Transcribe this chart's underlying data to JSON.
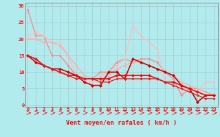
{
  "title": "",
  "xlabel": "Vent moyen/en rafales ( km/h )",
  "background_color": "#b2ebee",
  "grid_color": "#aacccc",
  "x_ticks": [
    0,
    1,
    2,
    3,
    4,
    5,
    6,
    7,
    8,
    9,
    10,
    11,
    12,
    13,
    14,
    15,
    16,
    17,
    18,
    19,
    20,
    21,
    22,
    23
  ],
  "y_ticks": [
    0,
    5,
    10,
    15,
    20,
    25,
    30
  ],
  "ylim": [
    -0.5,
    31
  ],
  "xlim": [
    -0.3,
    23.5
  ],
  "lines": [
    {
      "x": [
        0,
        1,
        2,
        3,
        4,
        5,
        6,
        7,
        8,
        9,
        10,
        11,
        12,
        13,
        14,
        15,
        16,
        17,
        18,
        19,
        20,
        21,
        22,
        23
      ],
      "y": [
        29,
        21,
        21,
        15,
        15,
        12,
        9,
        8,
        8,
        10,
        10,
        13,
        14,
        13,
        14,
        14,
        13,
        10,
        8,
        3,
        5,
        5,
        4,
        3
      ],
      "color": "#ff8888",
      "lw": 1.0,
      "marker": "D",
      "ms": 2.0
    },
    {
      "x": [
        0,
        1,
        2,
        3,
        4,
        5,
        6,
        7,
        8,
        9,
        10,
        11,
        12,
        13,
        14,
        15,
        16,
        17,
        18,
        19,
        20,
        21,
        22,
        23
      ],
      "y": [
        21,
        22,
        21,
        19,
        19,
        15,
        9,
        7,
        7,
        9,
        10,
        12,
        14,
        24,
        21,
        19,
        17,
        7,
        6,
        5,
        5,
        4,
        7,
        7
      ],
      "color": "#ffbbbb",
      "lw": 1.0,
      "marker": "D",
      "ms": 2.0
    },
    {
      "x": [
        0,
        1,
        2,
        3,
        4,
        5,
        6,
        7,
        8,
        9,
        10,
        11,
        12,
        13,
        14,
        15,
        16,
        17,
        18,
        19,
        20,
        21,
        22,
        23
      ],
      "y": [
        20,
        20,
        19,
        19,
        18,
        15,
        12,
        9,
        8,
        8,
        9,
        11,
        12,
        13,
        13,
        12,
        11,
        10,
        9,
        7,
        6,
        5,
        4,
        3
      ],
      "color": "#ffaaaa",
      "lw": 1.0,
      "marker": "D",
      "ms": 2.0
    },
    {
      "x": [
        0,
        1,
        2,
        3,
        4,
        5,
        6,
        7,
        8,
        9,
        10,
        11,
        12,
        13,
        14,
        15,
        16,
        17,
        18,
        19,
        20,
        21,
        22,
        23
      ],
      "y": [
        15,
        13,
        12,
        11,
        11,
        10,
        9,
        7,
        6,
        6,
        10,
        10,
        8,
        14,
        13,
        12,
        11,
        10,
        9,
        6,
        5,
        1,
        3,
        3
      ],
      "color": "#cc0000",
      "lw": 1.2,
      "marker": "D",
      "ms": 2.5
    },
    {
      "x": [
        0,
        1,
        2,
        3,
        4,
        5,
        6,
        7,
        8,
        9,
        10,
        11,
        12,
        13,
        14,
        15,
        16,
        17,
        18,
        19,
        20,
        21,
        22,
        23
      ],
      "y": [
        15,
        14,
        12,
        11,
        10,
        9,
        9,
        8,
        8,
        8,
        8,
        9,
        9,
        9,
        9,
        9,
        8,
        7,
        7,
        6,
        5,
        4,
        3,
        3
      ],
      "color": "#ff0000",
      "lw": 1.2,
      "marker": "D",
      "ms": 2.5
    },
    {
      "x": [
        0,
        1,
        2,
        3,
        4,
        5,
        6,
        7,
        8,
        9,
        10,
        11,
        12,
        13,
        14,
        15,
        16,
        17,
        18,
        19,
        20,
        21,
        22,
        23
      ],
      "y": [
        15,
        14,
        12,
        11,
        10,
        9,
        8,
        8,
        8,
        7,
        7,
        8,
        8,
        8,
        8,
        8,
        8,
        7,
        6,
        5,
        4,
        3,
        2,
        2
      ],
      "color": "#dd2222",
      "lw": 1.0,
      "marker": "D",
      "ms": 2.0
    }
  ],
  "tick_fontsize": 5.0,
  "label_fontsize": 6.5,
  "spine_color": "#888888"
}
